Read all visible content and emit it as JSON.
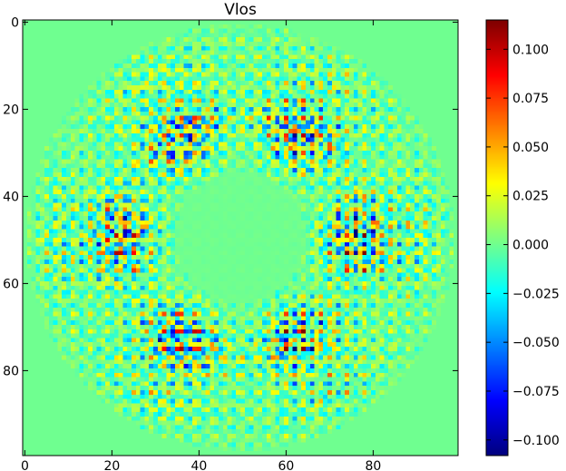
{
  "chart_data": {
    "type": "heatmap",
    "title": "Vlos",
    "xlabel": "",
    "ylabel": "",
    "x_ticks": [
      "0",
      "20",
      "40",
      "60",
      "80"
    ],
    "y_ticks": [
      "0",
      "20",
      "40",
      "60",
      "80"
    ],
    "x_tick_values": [
      0,
      20,
      40,
      60,
      80
    ],
    "y_tick_values": [
      0,
      20,
      40,
      60,
      80
    ],
    "xlim": [
      -0.5,
      99.5
    ],
    "ylim": [
      99.5,
      -0.5
    ],
    "grid": false,
    "colormap": "jet",
    "colorbar": {
      "vmin": -0.108,
      "vmax": 0.115,
      "tick_values": [
        -0.1,
        -0.075,
        -0.05,
        -0.025,
        0.0,
        0.025,
        0.05,
        0.075,
        0.1
      ],
      "tick_labels": [
        "−0.100",
        "−0.075",
        "−0.050",
        "−0.025",
        "0.000",
        "0.025",
        "0.050",
        "0.075",
        "0.100"
      ]
    },
    "values_description_only": false,
    "grid_size": [
      100,
      100
    ],
    "pattern": {
      "disk_center": [
        49.5,
        49.5
      ],
      "disk_radius": 49,
      "inner_calm_radius": 15,
      "symmetry": 6,
      "outside_value": 0.0
    }
  },
  "colors": {
    "background": "#ffffff",
    "axis": "#000000"
  }
}
